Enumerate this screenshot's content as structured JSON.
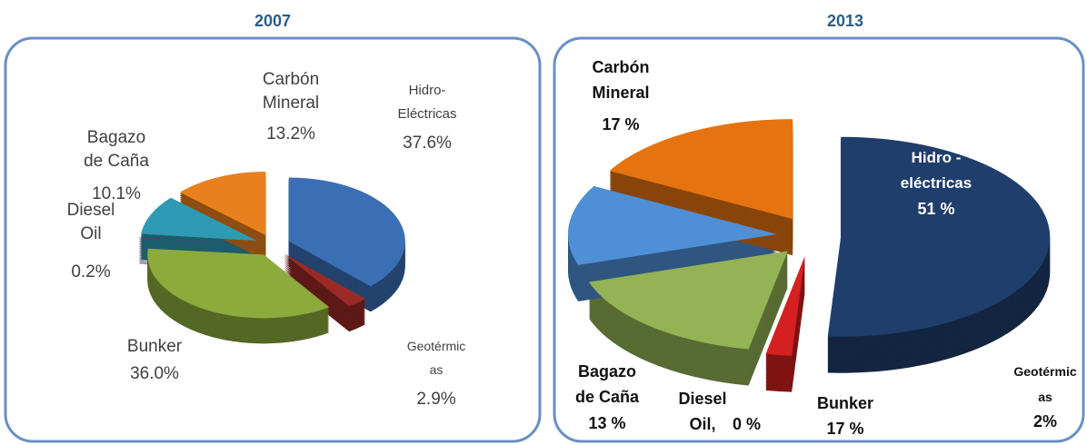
{
  "chart_data": [
    {
      "type": "pie",
      "title": "2007",
      "categories": [
        "Hidro-\nEléctricas",
        "Geotérmic\nas",
        "Bunker",
        "Diesel\nOil",
        "Bagazo\nde Caña",
        "Carbón\nMineral"
      ],
      "values": [
        37.6,
        2.9,
        36.0,
        0.2,
        10.1,
        13.2
      ],
      "value_labels": [
        "37.6%",
        "2.9%",
        "36.0%",
        "0.2%",
        "10.1%",
        "13.2%"
      ],
      "colors": [
        "#3a6fb5",
        "#9b2a26",
        "#8cab3c",
        "#5a3a7a",
        "#2e9ab3",
        "#e8801e"
      ]
    },
    {
      "type": "pie",
      "title": "2013",
      "categories": [
        "Hidro -\neléctricas",
        "Geotérmic\nas",
        "Bunker",
        "Diesel\nOil,",
        "Bagazo\nde Caña",
        "Carbón\nMineral"
      ],
      "values": [
        51,
        2,
        17,
        0,
        13,
        17
      ],
      "value_labels": [
        "51 %",
        "2%",
        "17 %",
        "0 %",
        "13 %",
        "17 %"
      ],
      "colors": [
        "#1f3e6b",
        "#d42020",
        "#93b355",
        "#5b2b85",
        "#4f8fd6",
        "#e5730f"
      ]
    }
  ]
}
